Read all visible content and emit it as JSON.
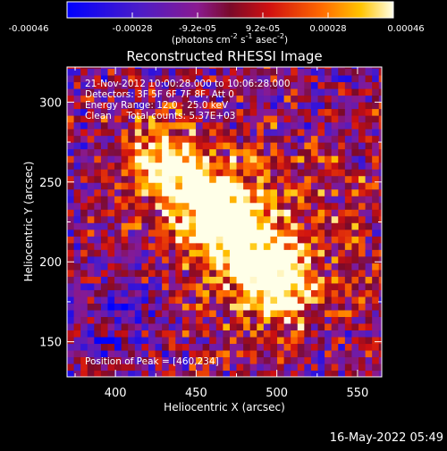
{
  "chart_data": {
    "type": "heatmap",
    "title": "Reconstructed RHESSI Image",
    "xlabel": "Heliocentric X (arcsec)",
    "ylabel": "Heliocentric Y (arcsec)",
    "xlim": [
      370,
      565
    ],
    "ylim": [
      128,
      322
    ],
    "xticks": [
      400,
      450,
      500,
      550
    ],
    "yticks": [
      150,
      200,
      250,
      300
    ],
    "colorbar": {
      "min": -0.00046,
      "max": 0.00046,
      "ticks": [
        "-0.00046",
        "-0.00028",
        "-9.2e-05",
        "9.2e-05",
        "0.00028",
        "0.00046"
      ],
      "units": "(photons cm",
      "units_exp1": "-2",
      "units_mid": " s",
      "units_exp2": "-1",
      "units_end": " asec",
      "units_exp3": "-2",
      "units_close": ")"
    },
    "annotations": {
      "line1": "21-Nov-2012 10:00:28.000 to 10:06:28.000",
      "line2": "Detectors: 3F 5F 6F 7F 8F, Att 0",
      "line3": "Energy Range: 12.0 - 25.0 keV",
      "line4": "Clean     Total counts: 5.37E+03",
      "peak": "Position of Peak = [460,234]"
    },
    "peak": {
      "x": 460,
      "y": 234
    },
    "source_ridge": [
      {
        "x": 422,
        "y": 265
      },
      {
        "x": 440,
        "y": 258
      },
      {
        "x": 460,
        "y": 234
      },
      {
        "x": 478,
        "y": 218
      },
      {
        "x": 492,
        "y": 198
      },
      {
        "x": 505,
        "y": 182
      }
    ],
    "negative_region": {
      "x": 400,
      "y": 160
    }
  },
  "timestamp": "16-May-2022 05:49"
}
